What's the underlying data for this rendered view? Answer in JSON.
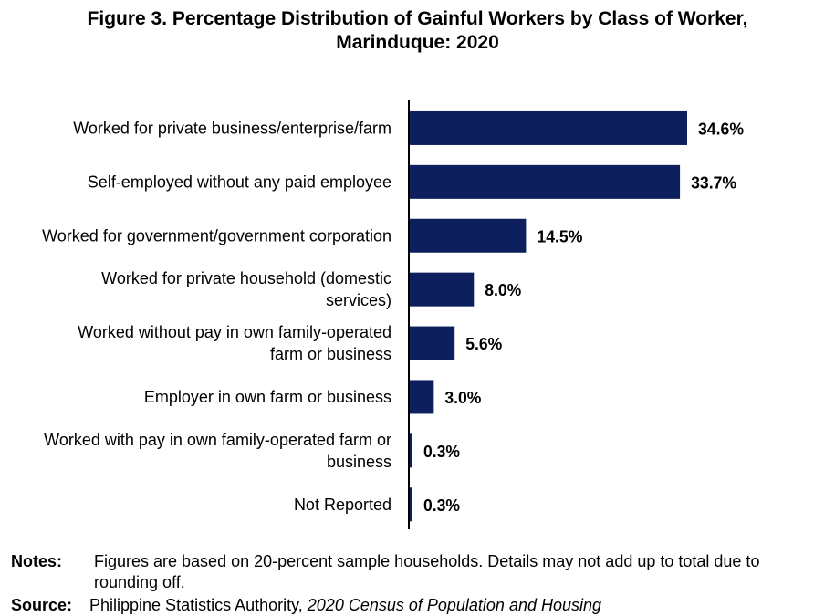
{
  "chart_data": {
    "type": "bar",
    "orientation": "horizontal",
    "title_lines": [
      "Figure 3. Percentage Distribution of Gainful Workers by Class of Worker,",
      "Marinduque: 2020"
    ],
    "categories": [
      [
        "Worked for private business/enterprise/farm"
      ],
      [
        "Self-employed without any paid employee"
      ],
      [
        "Worked for government/government corporation"
      ],
      [
        "Worked for private household (domestic",
        "services)"
      ],
      [
        "Worked without pay in own family-operated",
        "farm or business"
      ],
      [
        "Employer in own farm or business"
      ],
      [
        "Worked with pay in own family-operated farm or",
        "business"
      ],
      [
        "Not Reported"
      ]
    ],
    "values": [
      34.6,
      33.7,
      14.5,
      8.0,
      5.6,
      3.0,
      0.3,
      0.3
    ],
    "value_labels": [
      "34.6%",
      "33.7%",
      "14.5%",
      "8.0%",
      "5.6%",
      "3.0%",
      "0.3%",
      "0.3%"
    ],
    "unit": "%",
    "xlim": [
      0,
      40
    ],
    "grid": false,
    "legend": "none",
    "bar_color": "#0d1f5c"
  },
  "notes": {
    "label": "Notes:",
    "text": "Figures are based on 20-percent sample households. Details may not add up to total due to rounding off."
  },
  "source": {
    "label": "Source:",
    "text": "Philippine Statistics Authority, ",
    "publication": "2020 Census of Population and Housing"
  }
}
